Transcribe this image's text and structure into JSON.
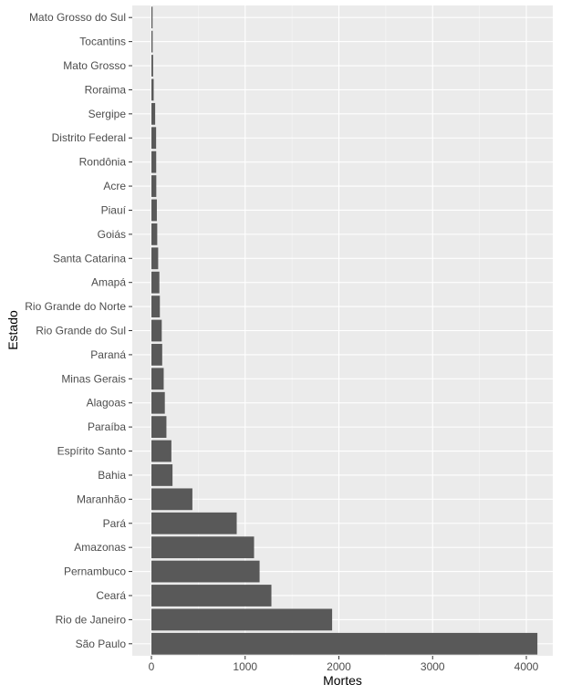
{
  "chart_data": {
    "type": "bar",
    "orientation": "horizontal",
    "title": "",
    "xlabel": "Mortes",
    "ylabel": "Estado",
    "xlim": [
      0,
      4100
    ],
    "x_ticks": [
      0,
      1000,
      2000,
      3000,
      4000
    ],
    "grid": true,
    "bar_color": "#595959",
    "panel_color": "#ebebeb",
    "categories": [
      "São Paulo",
      "Rio de Janeiro",
      "Ceará",
      "Pernambuco",
      "Amazonas",
      "Pará",
      "Maranhão",
      "Bahia",
      "Espírito Santo",
      "Paraíba",
      "Alagoas",
      "Minas Gerais",
      "Paraná",
      "Rio Grande do Sul",
      "Rio Grande do Norte",
      "Amapá",
      "Santa Catarina",
      "Goiás",
      "Piauí",
      "Acre",
      "Rondônia",
      "Distrito Federal",
      "Sergipe",
      "Roraima",
      "Mato Grosso",
      "Tocantins",
      "Mato Grosso do Sul"
    ],
    "values": [
      4118,
      1928,
      1280,
      1154,
      1095,
      910,
      437,
      225,
      213,
      160,
      143,
      131,
      115,
      110,
      90,
      85,
      72,
      62,
      58,
      52,
      51,
      50,
      40,
      24,
      18,
      13,
      12
    ]
  }
}
